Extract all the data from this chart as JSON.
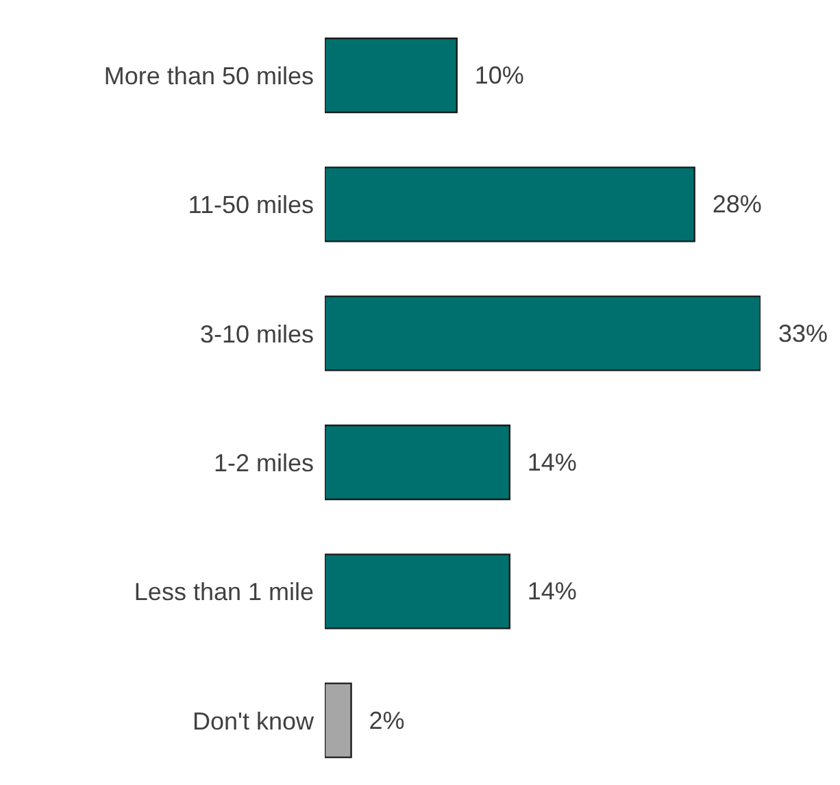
{
  "chart_data": {
    "type": "bar",
    "orientation": "horizontal",
    "tick_labels": "y",
    "categories": [
      "More than 50 miles",
      "11-50 miles",
      "3-10 miles",
      "1-2 miles",
      "Less than 1 mile",
      "Don't know"
    ],
    "values": [
      10,
      28,
      33,
      14,
      14,
      2
    ],
    "colors": [
      "#00706e",
      "#00706e",
      "#00706e",
      "#00706e",
      "#00706e",
      "#a6a6a6"
    ],
    "value_labels": [
      "10%",
      "28%",
      "33%",
      "14%",
      "14%",
      "2%"
    ],
    "grid": false,
    "legend": false
  }
}
